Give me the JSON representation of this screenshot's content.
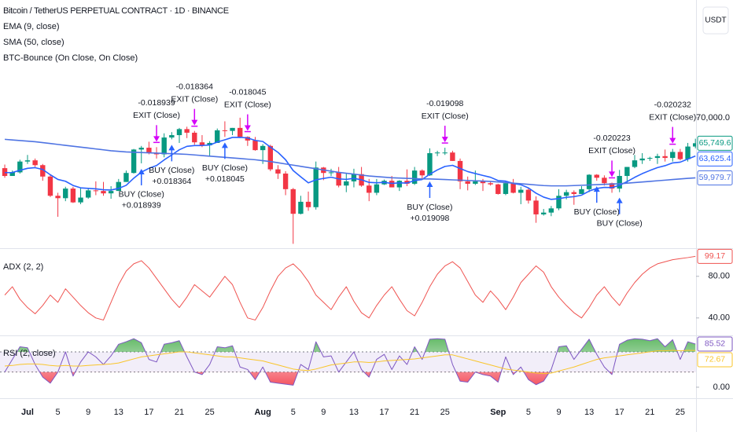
{
  "chart_data": [
    {
      "type": "candlestick",
      "title": "Bitcoin / TetherUS PERPETUAL CONTRACT · 1D · BINANCE",
      "currency": "USDT",
      "categories": [
        null,
        null,
        null,
        "Jul",
        null,
        null,
        null,
        "5",
        null,
        null,
        null,
        "9",
        null,
        null,
        null,
        "13",
        null,
        null,
        null,
        "17",
        null,
        null,
        null,
        "21",
        null,
        null,
        null,
        "25",
        null,
        null,
        null,
        null,
        null,
        null,
        "Aug",
        null,
        null,
        null,
        "5",
        null,
        null,
        null,
        "9",
        null,
        null,
        null,
        "13",
        null,
        null,
        null,
        "17",
        null,
        null,
        null,
        "21",
        null,
        null,
        null,
        "25",
        null,
        null,
        null,
        null,
        null,
        null,
        "Sep",
        null,
        null,
        null,
        "5",
        null,
        null,
        null,
        "9",
        null,
        null,
        null,
        "13",
        null,
        null,
        null,
        "17",
        null,
        null,
        null,
        "21",
        null,
        null,
        null,
        "25",
        null,
        null
      ],
      "open": [
        61600,
        60300,
        60900,
        62700,
        62900,
        62100,
        60200,
        57000,
        56600,
        58200,
        55900,
        56700,
        57900,
        57800,
        57400,
        57800,
        59300,
        60800,
        64700,
        65000,
        64100,
        63900,
        66700,
        67100,
        68100,
        67500,
        65900,
        65400,
        65800,
        67900,
        67800,
        68300,
        66800,
        66200,
        64600,
        65300,
        61400,
        60700,
        58100,
        54000,
        56000,
        55100,
        61700,
        60800,
        60900,
        58700,
        59400,
        60600,
        58700,
        57500,
        58900,
        59500,
        58400,
        59500,
        59000,
        61200,
        60400,
        64100,
        64200,
        64200,
        62800,
        59400,
        59000,
        59400,
        59100,
        58900,
        57300,
        59100,
        57500,
        58000,
        56200,
        53900,
        54200,
        54900,
        57000,
        57600,
        57300,
        58100,
        60500,
        60000,
        59100,
        58200,
        60300,
        61800,
        62900,
        63200,
        63300,
        63600,
        63300,
        64300,
        63100,
        65200
      ],
      "high": [
        62200,
        61200,
        63000,
        63800,
        63200,
        62300,
        60500,
        57500,
        58500,
        58500,
        58300,
        58300,
        59400,
        59300,
        58600,
        59800,
        61200,
        64800,
        65300,
        66000,
        65100,
        67400,
        67600,
        68300,
        68500,
        67800,
        67100,
        66100,
        68200,
        69400,
        68300,
        70000,
        66900,
        66800,
        65600,
        65500,
        62100,
        61100,
        58300,
        57000,
        57700,
        62700,
        61800,
        61500,
        61800,
        60700,
        61500,
        61800,
        59800,
        59800,
        59700,
        60300,
        59600,
        61400,
        61800,
        61400,
        64900,
        64500,
        65000,
        64500,
        63200,
        60200,
        61200,
        59800,
        59400,
        59000,
        59400,
        59800,
        58500,
        58300,
        56900,
        54800,
        55300,
        58100,
        58000,
        57900,
        58600,
        60600,
        60600,
        60400,
        59200,
        61300,
        61800,
        63800,
        64100,
        63500,
        64000,
        64700,
        64800,
        64800,
        65800,
        66500
      ],
      "low": [
        60000,
        60300,
        60700,
        62300,
        61800,
        59500,
        56800,
        53500,
        56100,
        55800,
        55600,
        56500,
        57100,
        57000,
        56500,
        57800,
        59300,
        60700,
        62400,
        63900,
        63200,
        63400,
        66400,
        65800,
        66600,
        65500,
        65100,
        63500,
        65800,
        66800,
        67100,
        66600,
        65300,
        64500,
        62300,
        61100,
        59800,
        57100,
        49000,
        53900,
        54500,
        54700,
        59600,
        60300,
        58400,
        57600,
        58400,
        58500,
        56100,
        57100,
        58800,
        58400,
        57800,
        58600,
        58800,
        59800,
        60300,
        63600,
        63800,
        62800,
        58100,
        57900,
        58800,
        57800,
        58700,
        57200,
        57100,
        57400,
        55600,
        55700,
        52500,
        53700,
        53600,
        54600,
        56400,
        55500,
        57300,
        57600,
        59500,
        58700,
        57500,
        57600,
        59200,
        61600,
        62300,
        62800,
        62300,
        62700,
        62700,
        62900,
        62700,
        64900
      ],
      "close": [
        60300,
        60900,
        62700,
        62900,
        62100,
        60200,
        57000,
        56600,
        58200,
        55900,
        56700,
        57900,
        57800,
        57400,
        57800,
        59300,
        60800,
        64700,
        65000,
        64100,
        63900,
        66700,
        67100,
        68100,
        67500,
        65900,
        65400,
        65800,
        67900,
        67800,
        68300,
        66800,
        66200,
        64600,
        65300,
        61400,
        60700,
        58100,
        54000,
        56000,
        55100,
        61700,
        60800,
        60900,
        58700,
        59400,
        60600,
        58700,
        57500,
        58900,
        59500,
        58400,
        59500,
        59000,
        61200,
        60400,
        64100,
        64200,
        64200,
        62800,
        59400,
        59000,
        59400,
        59100,
        58900,
        57300,
        59100,
        57500,
        58000,
        56200,
        53900,
        54200,
        54900,
        57000,
        57600,
        57300,
        58100,
        60500,
        60000,
        59100,
        58200,
        60300,
        61800,
        62900,
        63200,
        63300,
        63600,
        63300,
        64300,
        63100,
        65200,
        65749.6
      ],
      "close_label": "65,749.6",
      "up_color": "#089981",
      "down_color": "#f23645",
      "series": [
        {
          "name": "EMA (9, close)",
          "color": "#2962ff",
          "last_label": "63,625.4",
          "values": [
            60860,
            60870,
            61240,
            61570,
            61680,
            61380,
            60500,
            59720,
            59420,
            58720,
            58320,
            58240,
            58150,
            58000,
            57960,
            58230,
            58740,
            59930,
            60940,
            61570,
            62040,
            62970,
            63800,
            64660,
            65230,
            65360,
            65370,
            65460,
            65950,
            66320,
            66720,
            66740,
            66630,
            66220,
            66040,
            65110,
            64230,
            63000,
            61200,
            60160,
            59150,
            59660,
            59890,
            60090,
            59810,
            59730,
            59900,
            59660,
            59230,
            59160,
            59230,
            59060,
            59150,
            59120,
            59540,
            59710,
            60590,
            61310,
            61890,
            62070,
            61540,
            61030,
            60700,
            60380,
            60080,
            59530,
            59440,
            59050,
            58840,
            58310,
            57430,
            56780,
            56400,
            56520,
            56740,
            56850,
            57100,
            57780,
            58220,
            58400,
            58360,
            58750,
            59360,
            60070,
            60690,
            61210,
            61690,
            62010,
            62470,
            62600,
            63120,
            63625.4
          ]
        },
        {
          "name": "SMA (50, close)",
          "color": "#4f74e3",
          "last_label": "59,979.7",
          "values": [
            66400,
            66300,
            66200,
            66100,
            66000,
            65850,
            65700,
            65550,
            65400,
            65250,
            65100,
            64950,
            64800,
            64650,
            64500,
            64400,
            64300,
            64250,
            64200,
            64150,
            64100,
            64050,
            64000,
            63950,
            63900,
            63800,
            63700,
            63600,
            63500,
            63400,
            63300,
            63200,
            63100,
            63000,
            62850,
            62700,
            62500,
            62300,
            62100,
            61900,
            61700,
            61500,
            61300,
            61100,
            60900,
            60750,
            60600,
            60450,
            60300,
            60200,
            60100,
            60000,
            59950,
            59900,
            59850,
            59800,
            59800,
            59750,
            59700,
            59650,
            59600,
            59550,
            59500,
            59450,
            59400,
            59300,
            59200,
            59100,
            59000,
            58900,
            58800,
            58700,
            58650,
            58650,
            58650,
            58700,
            58750,
            58800,
            58850,
            58900,
            58950,
            59000,
            59100,
            59200,
            59300,
            59400,
            59500,
            59600,
            59700,
            59800,
            59900,
            59979.7
          ]
        }
      ],
      "ylim": [
        48400,
        89600
      ],
      "yticks": [
        {
          "value": 70000,
          "label": "70,000.0"
        }
      ],
      "strategy": {
        "name": "BTC-Bounce (On Close, On Close)",
        "buy_color": "#2962ff",
        "exit_color": "#d500f9",
        "trades": [
          {
            "entry_bar": 18,
            "entry_label": "BUY (Close)",
            "entry_profit": "+0.018939",
            "exit_bar": 20,
            "exit_label": "EXIT (Close)",
            "exit_profit": "-0.018939"
          },
          {
            "entry_bar": 22,
            "entry_label": "BUY (Close)",
            "entry_profit": "+0.018364",
            "exit_bar": 25,
            "exit_label": "EXIT (Close)",
            "exit_profit": "-0.018364"
          },
          {
            "entry_bar": 29,
            "entry_label": "BUY (Close)",
            "entry_profit": "+0.018045",
            "exit_bar": 32,
            "exit_label": "EXIT (Close)",
            "exit_profit": "-0.018045"
          },
          {
            "entry_bar": 56,
            "entry_label": "BUY (Close)",
            "entry_profit": "+0.019098",
            "exit_bar": 58,
            "exit_label": "EXIT (Close)",
            "exit_profit": "-0.019098"
          },
          {
            "entry_bar": 78,
            "entry_label": "BUY (Close)",
            "exit_bar": 80,
            "exit_label": "EXIT (Close)",
            "exit_profit": "-0.020223"
          },
          {
            "entry_bar": 81,
            "entry_label": "BUY (Close)",
            "exit_bar": 88,
            "exit_label": "EXIT (Close)",
            "exit_profit": "-0.020232"
          }
        ]
      }
    },
    {
      "type": "line",
      "series": [
        {
          "name": "ADX (2, 2)",
          "color": "#ef5350",
          "last_label": "99.17",
          "values": [
            62,
            70,
            58,
            50,
            44,
            52,
            62,
            55,
            68,
            60,
            52,
            45,
            40,
            38,
            55,
            72,
            85,
            92,
            95,
            88,
            78,
            68,
            58,
            50,
            60,
            72,
            66,
            60,
            70,
            80,
            72,
            55,
            40,
            38,
            50,
            66,
            80,
            88,
            92,
            85,
            75,
            62,
            55,
            48,
            60,
            70,
            56,
            45,
            40,
            52,
            62,
            70,
            58,
            47,
            42,
            55,
            70,
            82,
            90,
            94,
            88,
            75,
            62,
            55,
            66,
            58,
            48,
            60,
            74,
            82,
            90,
            84,
            70,
            60,
            52,
            45,
            40,
            50,
            62,
            70,
            60,
            52,
            64,
            74,
            82,
            88,
            92,
            94,
            96,
            97,
            98,
            99.17
          ]
        }
      ],
      "ylim": [
        24,
        105.5
      ],
      "yticks": [
        {
          "value": 80,
          "label": "80.00"
        },
        {
          "value": 40,
          "label": "40.00"
        }
      ]
    },
    {
      "type": "line",
      "series": [
        {
          "name": "RSI (2, close)",
          "color": "#7e57c2",
          "last_label": "85.52",
          "values": [
            30,
            55,
            80,
            78,
            45,
            20,
            8,
            30,
            70,
            22,
            50,
            70,
            60,
            45,
            62,
            85,
            90,
            96,
            88,
            55,
            50,
            85,
            88,
            92,
            60,
            30,
            25,
            45,
            80,
            78,
            82,
            40,
            35,
            15,
            40,
            10,
            8,
            6,
            4,
            45,
            35,
            90,
            60,
            62,
            30,
            50,
            70,
            35,
            20,
            55,
            65,
            35,
            62,
            45,
            80,
            55,
            95,
            96,
            95,
            45,
            12,
            10,
            30,
            25,
            22,
            10,
            60,
            25,
            40,
            15,
            5,
            12,
            35,
            80,
            82,
            55,
            75,
            95,
            65,
            40,
            25,
            85,
            93,
            96,
            95,
            92,
            96,
            80,
            94,
            55,
            90,
            85.52
          ]
        },
        {
          "color": "#f9c52a",
          "last_label": "72.67",
          "values": [
            42,
            43,
            45,
            46,
            46,
            45,
            43,
            42,
            43,
            42,
            42,
            43,
            44,
            45,
            46,
            48,
            52,
            56,
            60,
            62,
            64,
            66,
            68,
            70,
            70,
            68,
            66,
            64,
            62,
            60,
            60,
            58,
            56,
            54,
            52,
            48,
            44,
            40,
            36,
            34,
            33,
            36,
            40,
            44,
            46,
            48,
            50,
            50,
            49,
            50,
            52,
            53,
            54,
            55,
            56,
            58,
            60,
            62,
            64,
            64,
            60,
            56,
            52,
            48,
            44,
            40,
            36,
            34,
            32,
            30,
            28,
            27,
            28,
            32,
            36,
            40,
            45,
            50,
            55,
            58,
            60,
            62,
            64,
            66,
            68,
            70,
            72,
            72,
            73,
            72,
            73,
            72.67
          ]
        }
      ],
      "bands": [
        30,
        70
      ],
      "ylim": [
        -21.8,
        101
      ],
      "yticks": [
        {
          "value": 0,
          "label": "0.00"
        }
      ]
    }
  ]
}
